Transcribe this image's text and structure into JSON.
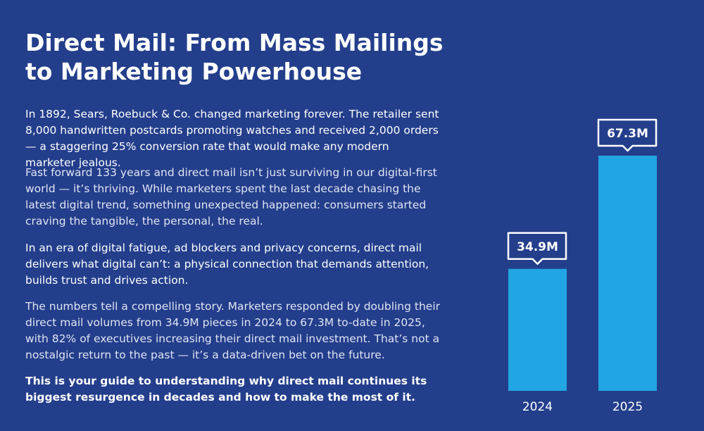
{
  "header": {
    "title": "Direct Mail: From Mass Mailings to Marketing Powerhouse"
  },
  "paragraphs": [
    "In 1892, Sears, Roebuck & Co. changed marketing forever. The retailer sent 8,000 handwritten postcards promoting watches and received 2,000 orders — a staggering 25% conversion rate that would make any modern marketer jealous.",
    "Fast forward 133 years and direct mail isn’t just surviving in our digital-first world — it’s thriving. While marketers spent the last decade chasing the latest digital trend, something unexpected happened: consumers started craving the tangible, the personal, the real.",
    "In an era of digital fatigue, ad blockers and privacy concerns, direct mail delivers what digital can’t: a physical connection that demands attention, builds trust and drives action.",
    "The numbers tell a compelling story. Marketers responded by doubling their direct mail volumes from 34.9M pieces in 2024 to 67.3M to-date in 2025, with 82% of executives increasing their direct mail investment. That’s not a nostalgic return to the past — it’s a data-driven bet on the future.",
    "This is your guide to understanding why direct mail continues its biggest resurgence in decades and how to make the most of it."
  ],
  "chart_data": {
    "type": "bar",
    "categories": [
      "2024",
      "2025"
    ],
    "values": [
      34.9,
      67.3
    ],
    "value_labels": [
      "34.9M",
      "67.3M"
    ],
    "color": "#22a5e3"
  }
}
